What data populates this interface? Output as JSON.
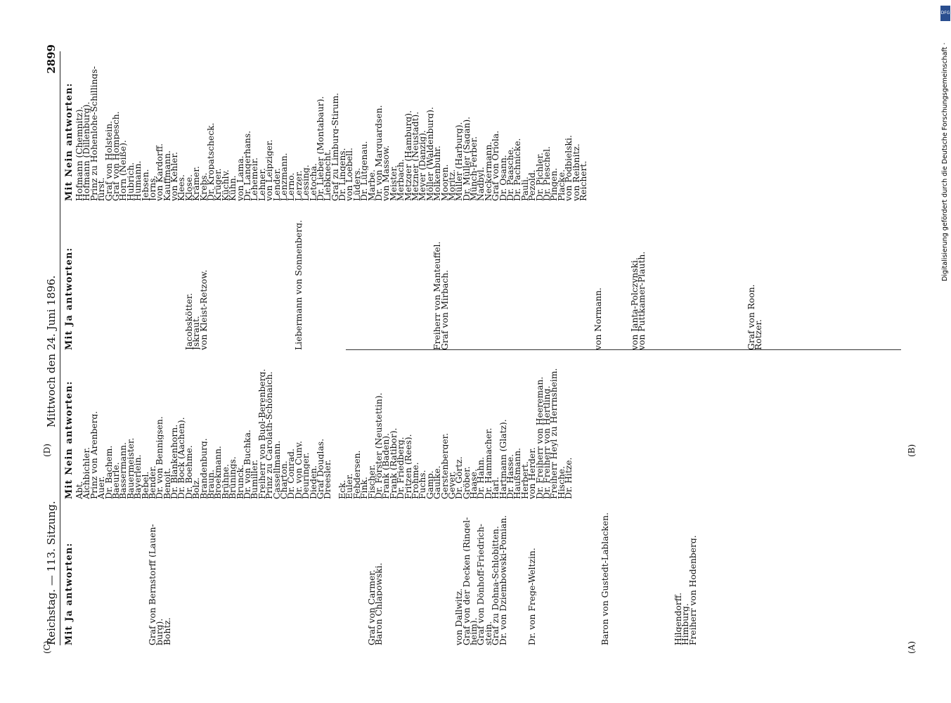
{
  "header": {
    "left": "Reichstag. — 113. Sitzung.",
    "center": "Mittwoch den 24. Juni 1896.",
    "page_number": "2899"
  },
  "margin_marks": {
    "A": "(A)",
    "B": "(B)",
    "C": "(C)",
    "D": "(D)"
  },
  "sidebar": {
    "credit": "Digitalisierung gefördert durch die Deutsche Forschungsgemeinschaft ·",
    "logo": "DFG"
  },
  "col1": {
    "heading": "Mit Ja antworten:",
    "rows": [
      "",
      "",
      "",
      "",
      "",
      "",
      "",
      "",
      "",
      "",
      "Graf von Bernstorff (Lauen-",
      "burg).",
      "Bohtz.",
      "",
      "",
      "",
      "",
      "",
      "",
      "",
      "",
      "",
      "",
      "",
      "",
      "",
      "",
      "",
      "",
      "",
      "",
      "",
      "",
      "",
      "",
      "",
      "",
      "",
      "",
      "",
      "Graf von Carmer.",
      "Baron Chlapowski.",
      "",
      "",
      "",
      "",
      "",
      "",
      "",
      "",
      "",
      "",
      "von Dallwitz.",
      "Graf von der Decken (Ringel-",
      "heim).",
      "Graf von Dönhoff-Friedrich-",
      "stein.",
      "Graf zu Dohna-Schlobitten.",
      "Dr. von Dziembowski-Pomian.",
      "",
      "",
      "",
      "Dr. von Frege-Weltzin.",
      "",
      "",
      "",
      "",
      "",
      "",
      "",
      "",
      "",
      "Baron von Gustedt-Lablacken.",
      "",
      "",
      "",
      "",
      "",
      "",
      "",
      "",
      "",
      "Hilgendorff.",
      "Himburg.",
      "Freiherr von Hodenberg.",
      "",
      "",
      "",
      "",
      "",
      "",
      "",
      "",
      "",
      "",
      "",
      ""
    ]
  },
  "col2": {
    "heading": "Mit Nein antworten:",
    "rows": [
      "Abt.",
      "Aichbichler.",
      "Prinz von Arenberg.",
      "Auer.",
      "Dr. Bachem.",
      "Baeurle.",
      "Bassermann.",
      "Bauermeister.",
      "Bayerlein.",
      "Bebel.",
      "Bender.",
      "Dr. von Bennigsen.",
      "Benoit.",
      "Dr. Blankenhorn.",
      "Dr. Bock (Aachen).",
      "Dr. Boehme.",
      "Bolz.",
      "Brandenburg.",
      "Braun.",
      "Broekmann.",
      "Brühne.",
      "Brünings.",
      "Brunck.",
      "Dr. von Buchka.",
      "Bumiller.",
      "Freiherr von Buol-Berenberg.",
      "Prinz zu Carolath-Schönaich.",
      "Cassellmann.",
      "Charton.",
      "Dr. Conrad.",
      "Dr. von Cuny.",
      "Deuringer.",
      "Dieden.",
      "Graf Douglas.",
      "Dreesler.",
      "",
      "Eck.",
      "Euler.",
      "Febdersen.",
      "Fink.",
      "Fischer.",
      "Dr. Förster (Neustettin).",
      "Frank (Baden).",
      "Frank (Ratibor).",
      "Dr. Friedberg.",
      "Fritzen (Rees).",
      "Frohme.",
      "Fuchs.",
      "Gamp.",
      "Gaulke.",
      "Gerstenberger.",
      "Geyer.",
      "Dr. Görtz.",
      "Gröber.",
      "Haase.",
      "Dr. Hahn.",
      "Dr. Hammacher.",
      "Harl.",
      "Hartmann (Glatz).",
      "Dr. Hasse.",
      "Haußmann.",
      "Herbert.",
      "von Herder.",
      "Dr. Freiherr von Heereman.",
      "Dr. Freiherr von Hertling.",
      "Freiherr Heyl zu Herrnsheim.",
      "Hische.",
      "Dr. Hitze."
    ]
  },
  "col3": {
    "heading": "Mit Ja antworten:",
    "rows": [
      "",
      "",
      "",
      "",
      "",
      "",
      "",
      "",
      "",
      "",
      "",
      "",
      "",
      "",
      "",
      "Jacobskötter.",
      "Jskraut.",
      "von Kleist-Retzow.",
      "",
      "",
      "",
      "",
      "",
      "",
      "",
      "",
      "",
      "",
      "",
      "",
      "Liebermann von Sonnenberg.",
      "",
      "",
      "",
      "",
      "",
      "",
      "",
      "",
      "",
      "",
      "",
      "",
      "",
      "",
      "",
      "",
      "",
      "",
      "Freiherr von Manteuffel.",
      "Graf von Mirbach.",
      "",
      "",
      "",
      "",
      "",
      "",
      "",
      "",
      "",
      "",
      "",
      "",
      "",
      "",
      "",
      "",
      "",
      "",
      "",
      "",
      "von Normann.",
      "",
      "",
      "",
      "",
      "von Janta-Polczynski.",
      "von Puttkamer-Plauth.",
      "",
      "",
      "",
      "",
      "",
      "",
      "",
      "",
      "",
      "",
      "",
      "",
      "",
      "",
      "Graf von Roon.",
      "Rotzer."
    ]
  },
  "col4": {
    "heading": "Mit Nein antworten:",
    "rows": [
      "Hofmann (Chemnitz).",
      "Hofmann (Dillenburg).",
      "Prinz zu Hohenlohe-Schillings-",
      "fürst.",
      "Graf von Holstein.",
      "Graf von Hompesch.",
      "Horn (Neiße).",
      "Hubrich.",
      "Humann.",
      "Jebsen.",
      "Jorns.",
      "von Kardorff.",
      "Kauffmann.",
      "von Kehler.",
      "Klees.",
      "Klose.",
      "Krämer.",
      "Krebs.",
      "Dr. Kropatscheck.",
      "Krüger.",
      "Küchly.",
      "Kühn.",
      "von Lama.",
      "Dr. Langerhans.",
      "Lehemeir.",
      "Lehner.",
      "von Leipziger.",
      "Lender.",
      "Lenzmann.",
      "Lerno.",
      "Lerzer.",
      "Lessing.",
      "Letocha.",
      "Dr. Lieber (Montabaur).",
      "Liebknecht.",
      "Graf zu Limburg-Stirum.",
      "Dr. Lingens.",
      "von Loebell.",
      "Lüders.",
      "Dr. Lütgenau.",
      "Marbe.",
      "Dr. von Marquardsen.",
      "von Massow.",
      "Meister.",
      "Merbach.",
      "Metzger (Hamburg).",
      "Metzner (Neustadt).",
      "Meyer (Danzig).",
      "Möller (Waldenburg).",
      "Molkenbuhr.",
      "Mooren.",
      "Moritz.",
      "Müller (Harburg).",
      "Dr. Müller (Sagan).",
      "Münch-Ferber.",
      "Nadbyl.",
      "Neckermann.",
      "Graf von Oriola.",
      "Dr. Osann.",
      "Dr. Paasche.",
      "Dr. Pachnicke.",
      "Pauli.",
      "Pezold.",
      "Dr. Pichler.",
      "Dr. Pieschel.",
      "Pingen.",
      "Placke.",
      "von Podbielski.",
      "von Reibnitz.",
      "Reichert."
    ]
  }
}
